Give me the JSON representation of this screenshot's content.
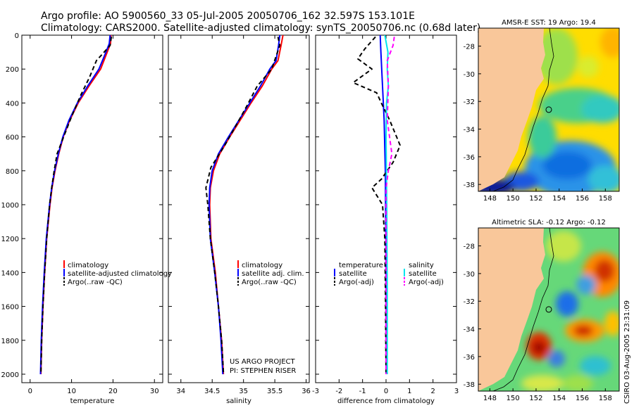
{
  "header": {
    "line1": "Argo profile: AO 5900560_33 05-Jul-2005 20050706_162 32.597S 153.101E",
    "line2": "Climatology: CARS2000. Satellite-adjusted climatology: synTS_20050706.nc (0.68d later)"
  },
  "footer": {
    "project": "US ARGO PROJECT",
    "pi": "PI: STEPHEN RISER",
    "stamp": "CSIRO 03-Aug-2005 23:31:09"
  },
  "colors": {
    "climatology": "#ff0000",
    "satellite": "#0000ff",
    "argo": "#000000",
    "salinity": "#00e5ee",
    "salinity_argo": "#ff00ff",
    "land": "#f9c79a"
  },
  "chart_data": [
    {
      "type": "line",
      "id": "temperature-profile",
      "xlabel": "temperature",
      "ylabel": "",
      "xlim": [
        -2,
        32
      ],
      "ylim": [
        2050,
        0
      ],
      "y_reversed": true,
      "xticks": [
        0,
        10,
        20,
        30
      ],
      "yticks": [
        0,
        200,
        400,
        600,
        800,
        1000,
        1200,
        1400,
        1600,
        1800,
        2000
      ],
      "legend": [
        "climatology",
        "satellite-adjusted climatology",
        "Argo(..raw -QC)"
      ],
      "series": [
        {
          "name": "climatology",
          "color": "#ff0000",
          "dash": "",
          "points": [
            [
              19.5,
              0
            ],
            [
              19.4,
              50
            ],
            [
              18.6,
              100
            ],
            [
              17.0,
              200
            ],
            [
              14.2,
              300
            ],
            [
              11.6,
              400
            ],
            [
              9.6,
              500
            ],
            [
              8.0,
              600
            ],
            [
              6.9,
              700
            ],
            [
              6.0,
              800
            ],
            [
              5.3,
              900
            ],
            [
              4.8,
              1000
            ],
            [
              4.0,
              1200
            ],
            [
              3.5,
              1400
            ],
            [
              3.1,
              1600
            ],
            [
              2.8,
              1800
            ],
            [
              2.6,
              2000
            ]
          ]
        },
        {
          "name": "satellite-adjusted climatology",
          "color": "#0000ff",
          "dash": "",
          "points": [
            [
              19.3,
              0
            ],
            [
              19.1,
              50
            ],
            [
              18.3,
              100
            ],
            [
              16.6,
              200
            ],
            [
              13.9,
              300
            ],
            [
              11.4,
              400
            ],
            [
              9.4,
              500
            ],
            [
              7.9,
              600
            ],
            [
              6.8,
              700
            ],
            [
              5.9,
              800
            ],
            [
              5.2,
              900
            ],
            [
              4.7,
              1000
            ],
            [
              3.9,
              1200
            ],
            [
              3.4,
              1400
            ],
            [
              3.0,
              1600
            ],
            [
              2.7,
              1800
            ],
            [
              2.5,
              2000
            ]
          ]
        },
        {
          "name": "Argo(..raw -QC)",
          "color": "#000000",
          "dash": "6,4",
          "points": [
            [
              19.6,
              10
            ],
            [
              19.3,
              60
            ],
            [
              17.5,
              110
            ],
            [
              16.0,
              150
            ],
            [
              14.3,
              250
            ],
            [
              12.3,
              350
            ],
            [
              10.0,
              480
            ],
            [
              8.4,
              580
            ],
            [
              6.5,
              700
            ],
            [
              5.8,
              800
            ],
            [
              5.2,
              900
            ],
            [
              4.7,
              1000
            ],
            [
              4.0,
              1200
            ],
            [
              3.5,
              1400
            ],
            [
              3.1,
              1600
            ],
            [
              2.8,
              1800
            ],
            [
              2.6,
              1990
            ]
          ]
        }
      ]
    },
    {
      "type": "line",
      "id": "salinity-profile",
      "xlabel": "salinity",
      "ylabel": "",
      "xlim": [
        33.8,
        36.05
      ],
      "ylim": [
        2050,
        0
      ],
      "y_reversed": true,
      "xticks": [
        34,
        34.5,
        35,
        35.5,
        36
      ],
      "legend": [
        "climatology",
        "satellite adj. clim.",
        "Argo(..raw -QC)"
      ],
      "series": [
        {
          "name": "climatology",
          "color": "#ff0000",
          "dash": "",
          "points": [
            [
              35.63,
              0
            ],
            [
              35.6,
              60
            ],
            [
              35.55,
              150
            ],
            [
              35.45,
              200
            ],
            [
              35.3,
              300
            ],
            [
              35.12,
              400
            ],
            [
              34.95,
              500
            ],
            [
              34.78,
              600
            ],
            [
              34.62,
              700
            ],
            [
              34.52,
              800
            ],
            [
              34.47,
              900
            ],
            [
              34.46,
              1000
            ],
            [
              34.48,
              1200
            ],
            [
              34.55,
              1400
            ],
            [
              34.6,
              1600
            ],
            [
              34.65,
              1800
            ],
            [
              34.68,
              2000
            ]
          ]
        },
        {
          "name": "satellite adj. clim.",
          "color": "#0000ff",
          "dash": "",
          "points": [
            [
              35.58,
              0
            ],
            [
              35.56,
              60
            ],
            [
              35.52,
              150
            ],
            [
              35.42,
              200
            ],
            [
              35.27,
              300
            ],
            [
              35.1,
              400
            ],
            [
              34.93,
              500
            ],
            [
              34.76,
              600
            ],
            [
              34.6,
              700
            ],
            [
              34.5,
              800
            ],
            [
              34.46,
              900
            ],
            [
              34.45,
              1000
            ],
            [
              34.47,
              1200
            ],
            [
              34.54,
              1400
            ],
            [
              34.6,
              1600
            ],
            [
              34.64,
              1800
            ],
            [
              34.67,
              2000
            ]
          ]
        },
        {
          "name": "Argo(..raw -QC)",
          "color": "#000000",
          "dash": "6,4",
          "points": [
            [
              35.55,
              10
            ],
            [
              35.58,
              60
            ],
            [
              35.45,
              200
            ],
            [
              35.22,
              300
            ],
            [
              35.05,
              420
            ],
            [
              34.9,
              520
            ],
            [
              34.7,
              650
            ],
            [
              34.48,
              780
            ],
            [
              34.4,
              900
            ],
            [
              34.43,
              1000
            ],
            [
              34.47,
              1200
            ],
            [
              34.54,
              1400
            ],
            [
              34.6,
              1600
            ],
            [
              34.65,
              1800
            ],
            [
              34.68,
              1990
            ]
          ]
        }
      ]
    },
    {
      "type": "line",
      "id": "difference-profile",
      "xlabel": "difference from climatology",
      "ylabel": "",
      "xlim": [
        -3,
        3
      ],
      "ylim": [
        2050,
        0
      ],
      "y_reversed": true,
      "xticks": [
        -3,
        -2,
        -1,
        0,
        1,
        2,
        3
      ],
      "legend": [
        "temperature",
        "satellite",
        "Argo(-adj)",
        "salinity",
        "satellite",
        "Argo(-adj)"
      ],
      "series": [
        {
          "name": "temperature satellite",
          "color": "#0000ff",
          "dash": "",
          "points": [
            [
              -0.25,
              0
            ],
            [
              -0.22,
              100
            ],
            [
              -0.15,
              300
            ],
            [
              -0.08,
              500
            ],
            [
              -0.03,
              800
            ],
            [
              -0.01,
              1200
            ],
            [
              0.0,
              2000
            ]
          ]
        },
        {
          "name": "temperature Argo(-adj)",
          "color": "#000000",
          "dash": "6,4",
          "points": [
            [
              -0.45,
              10
            ],
            [
              -0.9,
              80
            ],
            [
              -1.2,
              140
            ],
            [
              -0.6,
              200
            ],
            [
              -1.4,
              280
            ],
            [
              -0.4,
              340
            ],
            [
              -0.2,
              400
            ],
            [
              0.15,
              500
            ],
            [
              0.6,
              650
            ],
            [
              0.3,
              750
            ],
            [
              -0.2,
              850
            ],
            [
              -0.6,
              900
            ],
            [
              -0.15,
              1000
            ],
            [
              -0.05,
              1200
            ],
            [
              -0.02,
              1600
            ],
            [
              0.0,
              2000
            ]
          ]
        },
        {
          "name": "salinity satellite",
          "color": "#00e5ee",
          "dash": "",
          "points": [
            [
              -0.05,
              0
            ],
            [
              0.08,
              100
            ],
            [
              0.05,
              200
            ],
            [
              0.1,
              300
            ],
            [
              0.02,
              400
            ],
            [
              0.0,
              600
            ],
            [
              0.03,
              1000
            ],
            [
              0.05,
              1500
            ],
            [
              0.05,
              2000
            ]
          ]
        },
        {
          "name": "salinity Argo(-adj)",
          "color": "#ff00ff",
          "dash": "6,4",
          "points": [
            [
              0.35,
              10
            ],
            [
              0.3,
              60
            ],
            [
              0.05,
              150
            ],
            [
              0.1,
              300
            ],
            [
              0.05,
              500
            ],
            [
              0.25,
              700
            ],
            [
              0.1,
              800
            ],
            [
              0.0,
              900
            ],
            [
              0.0,
              2000
            ]
          ]
        }
      ]
    },
    {
      "type": "heatmap",
      "id": "sst-map",
      "title": "AMSR-E SST: 19 Argo: 19.4",
      "xlim": [
        147,
        159.2
      ],
      "ylim": [
        -38.5,
        -26.7
      ],
      "xticks": [
        148,
        150,
        152,
        154,
        156,
        158
      ],
      "yticks": [
        -28,
        -30,
        -32,
        -34,
        -36,
        -38
      ],
      "argo_position": [
        153.101,
        -32.597
      ]
    },
    {
      "type": "heatmap",
      "id": "sla-map",
      "title": "Altimetric SLA: -0.12 Argo: -0.12",
      "xlim": [
        147,
        159.2
      ],
      "ylim": [
        -38.5,
        -26.7
      ],
      "xticks": [
        148,
        150,
        152,
        154,
        156,
        158
      ],
      "yticks": [
        -28,
        -30,
        -32,
        -34,
        -36,
        -38
      ],
      "argo_position": [
        153.101,
        -32.597
      ]
    }
  ]
}
